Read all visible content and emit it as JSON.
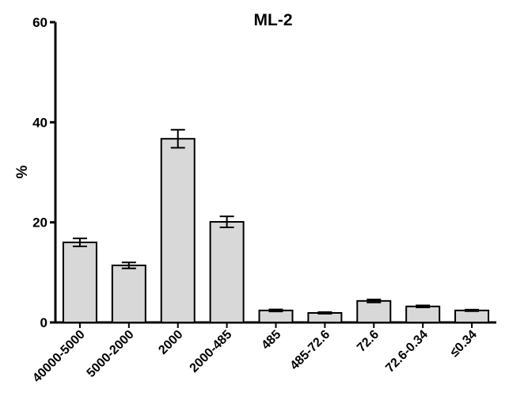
{
  "chart_data": {
    "type": "bar",
    "title": "ML-2",
    "xlabel": "",
    "ylabel": "%",
    "ylim": [
      0,
      60
    ],
    "yticks": [
      0,
      20,
      40,
      60
    ],
    "grid": false,
    "categories": [
      "40000-5000",
      "5000-2000",
      "2000",
      "2000-485",
      "485",
      "485-72.6",
      "72.6",
      "72.6-0.34",
      "≤0.34"
    ],
    "values": [
      16.0,
      11.4,
      36.7,
      20.1,
      2.4,
      1.9,
      4.3,
      3.2,
      2.4
    ],
    "errors": [
      0.8,
      0.6,
      1.8,
      1.1,
      0.2,
      0.15,
      0.3,
      0.2,
      0.15
    ],
    "colors": {
      "bar_fill": "#d8d8d8",
      "bar_stroke": "#000000",
      "axis": "#000000"
    }
  }
}
